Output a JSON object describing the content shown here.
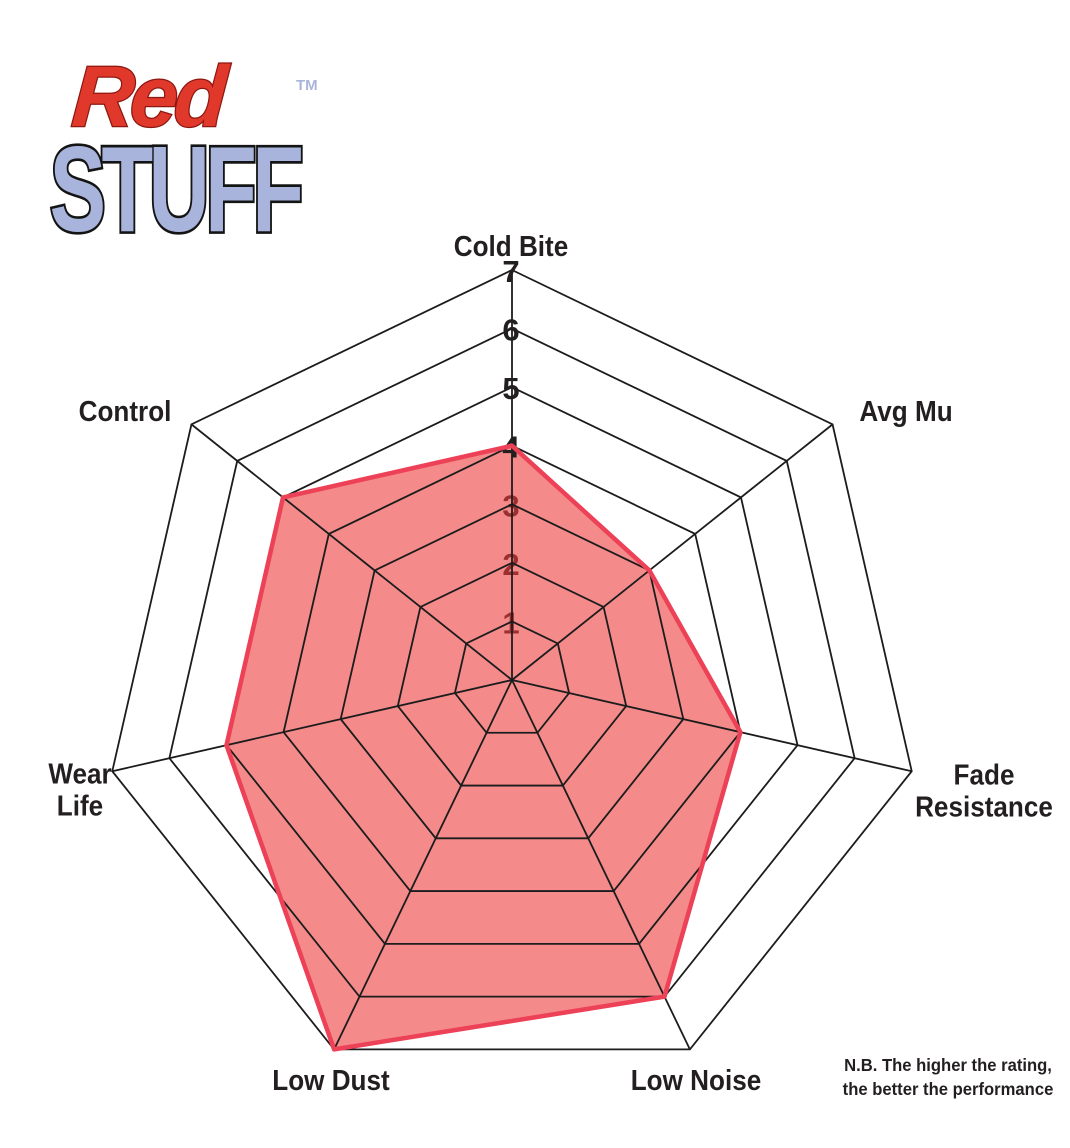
{
  "logo": {
    "word_top": "Red",
    "word_bottom": "STUFF",
    "trademark": "TM",
    "red_color": "#E0392C",
    "red_outline_color": "#8C1710",
    "blue_color": "#A9B4DC",
    "blue_outline_color": "#141414"
  },
  "note": {
    "line1": "N.B. The higher the rating,",
    "line2": "the better the performance"
  },
  "chart_data": {
    "type": "radar",
    "categories": [
      "Cold Bite",
      "Avg Mu",
      "Fade Resistance",
      "Low Noise",
      "Low Dust",
      "Wear Life",
      "Control"
    ],
    "values": [
      4,
      3,
      4,
      6,
      7,
      5,
      5
    ],
    "scale": {
      "min": 0,
      "max": 7
    },
    "ticks": [
      "1",
      "2",
      "3",
      "4",
      "5",
      "6",
      "7"
    ],
    "rings": 7,
    "grid_on": true,
    "legend": "none",
    "title": "",
    "grid_color": "#1C1C1C",
    "tick_color": "#231F20",
    "fill_color": "#ED3C3C",
    "fill_opacity": 0.6,
    "stroke_color": "#EC4157"
  }
}
